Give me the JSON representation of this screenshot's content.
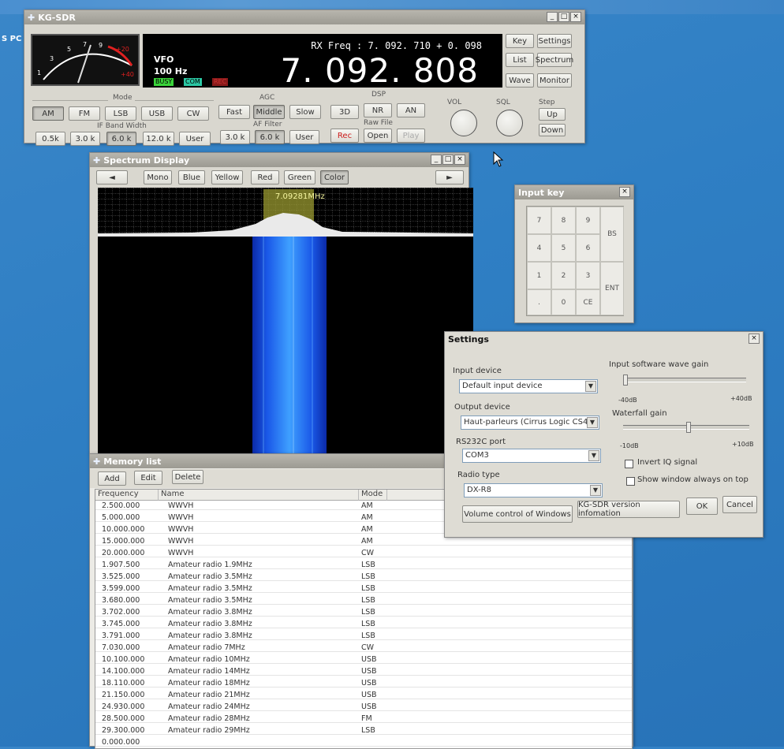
{
  "desktop": {
    "corner_label": "S PC"
  },
  "main_window": {
    "title": "KG-SDR",
    "meter": {
      "scale": [
        "1",
        "3",
        "5",
        "7",
        "9",
        "+20",
        "+40"
      ]
    },
    "lcd": {
      "vfo_label": "VFO",
      "step_text": "100 Hz",
      "rx_label": "RX Freq :",
      "rx_freq": "7. 092. 710",
      "rx_offset": "+ 0. 098",
      "freq": "7. 092. 808",
      "leds": [
        "BUSY",
        "COM",
        "REC"
      ]
    },
    "groups": {
      "mode": "Mode",
      "agc": "AGC",
      "dsp": "DSP",
      "ifbw": "IF Band Width",
      "affilter": "AF Filter",
      "rawfile": "Raw File",
      "vol": "VOL",
      "sql": "SQL",
      "step": "Step"
    },
    "mode_buttons": [
      "AM",
      "FM",
      "LSB",
      "USB",
      "CW"
    ],
    "agc_buttons": [
      "Fast",
      "Middle",
      "Slow"
    ],
    "dsp_buttons": [
      "3D",
      "NR",
      "AN"
    ],
    "ifbw_buttons": [
      "0.5k",
      "3.0 k",
      "6.0 k",
      "12.0 k",
      "User"
    ],
    "af_buttons": [
      "3.0 k",
      "6.0 k",
      "User"
    ],
    "rawfile_buttons": [
      "Rec",
      "Open",
      "Play"
    ],
    "step_buttons": [
      "Up",
      "Down"
    ],
    "right_buttons": [
      "Key",
      "Settings",
      "List",
      "Spectrum",
      "Wave",
      "Monitor"
    ]
  },
  "spectrum_window": {
    "title": "Spectrum Display",
    "prev": "◄",
    "next": "►",
    "color_buttons": [
      "Mono",
      "Blue",
      "Yellow",
      "Red",
      "Green",
      "Color"
    ],
    "marker_freq": "7.09281MHz"
  },
  "input_key": {
    "title": "Input key",
    "keys": [
      "7",
      "8",
      "9",
      "4",
      "5",
      "6",
      "1",
      "2",
      "3",
      ".",
      "0",
      "CE"
    ],
    "bs": "BS",
    "ent": "ENT"
  },
  "settings": {
    "title": "Settings",
    "input_device_label": "Input device",
    "input_device": "Default input device",
    "output_device_label": "Output device",
    "output_device": "Haut-parleurs (Cirrus Logic CS4",
    "rs232c_label": "RS232C port",
    "rs232c": "COM3",
    "radio_type_label": "Radio type",
    "radio_type": "DX-R8",
    "wave_gain_label": "Input software wave gain",
    "wave_gain_min": "-40dB",
    "wave_gain_max": "+40dB",
    "waterfall_gain_label": "Waterfall gain",
    "waterfall_min": "-10dB",
    "waterfall_max": "+10dB",
    "invert_iq": "Invert IQ signal",
    "always_on_top": "Show window always on top",
    "volume_btn": "Volume control of Windows",
    "version_btn": "KG-SDR version infomation",
    "ok": "OK",
    "cancel": "Cancel"
  },
  "memory": {
    "title": "Memory list",
    "buttons": [
      "Add",
      "Edit",
      "Delete"
    ],
    "headers": [
      "Frequency",
      "Name",
      "Mode"
    ],
    "rows": [
      [
        "2.500.000",
        "WWVH",
        "AM"
      ],
      [
        "5.000.000",
        "WWVH",
        "AM"
      ],
      [
        "10.000.000",
        "WWVH",
        "AM"
      ],
      [
        "15.000.000",
        "WWVH",
        "AM"
      ],
      [
        "20.000.000",
        "WWVH",
        "CW"
      ],
      [
        "1.907.500",
        "Amateur radio 1.9MHz",
        "LSB"
      ],
      [
        "3.525.000",
        "Amateur radio 3.5MHz",
        "LSB"
      ],
      [
        "3.599.000",
        "Amateur radio 3.5MHz",
        "LSB"
      ],
      [
        "3.680.000",
        "Amateur radio 3.5MHz",
        "LSB"
      ],
      [
        "3.702.000",
        "Amateur radio 3.8MHz",
        "LSB"
      ],
      [
        "3.745.000",
        "Amateur radio 3.8MHz",
        "LSB"
      ],
      [
        "3.791.000",
        "Amateur radio 3.8MHz",
        "LSB"
      ],
      [
        "7.030.000",
        "Amateur radio 7MHz",
        "CW"
      ],
      [
        "10.100.000",
        "Amateur radio 10MHz",
        "USB"
      ],
      [
        "14.100.000",
        "Amateur radio 14MHz",
        "USB"
      ],
      [
        "18.110.000",
        "Amateur radio 18MHz",
        "USB"
      ],
      [
        "21.150.000",
        "Amateur radio 21MHz",
        "USB"
      ],
      [
        "24.930.000",
        "Amateur radio 24MHz",
        "USB"
      ],
      [
        "28.500.000",
        "Amateur radio 28MHz",
        "FM"
      ],
      [
        "29.300.000",
        "Amateur radio 29MHz",
        "LSB"
      ],
      [
        "0.000.000",
        "",
        ""
      ]
    ]
  }
}
